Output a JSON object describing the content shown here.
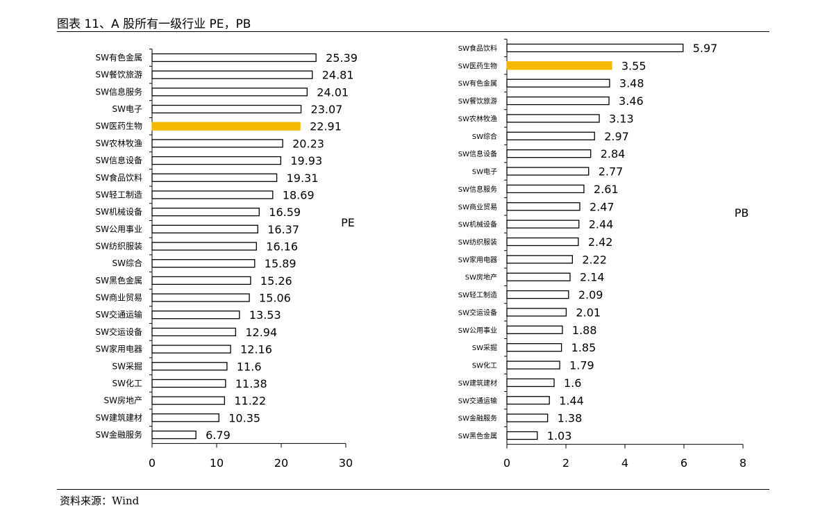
{
  "title": "图表 11、A 股所有一级行业 PE，PB",
  "source": "资料来源：Wind",
  "colors": {
    "bar_fill": "#ffffff",
    "bar_stroke": "#000000",
    "highlight": "#f5b800"
  },
  "chart_data": [
    {
      "type": "bar",
      "orientation": "horizontal",
      "series_label": "PE",
      "categories": [
        "SW有色金属",
        "SW餐饮旅游",
        "SW信息服务",
        "SW电子",
        "SW医药生物",
        "SW农林牧渔",
        "SW信息设备",
        "SW食品饮料",
        "SW轻工制造",
        "SW机械设备",
        "SW公用事业",
        "SW纺织服装",
        "SW综合",
        "SW黑色金属",
        "SW商业贸易",
        "SW交通运输",
        "SW交运设备",
        "SW家用电器",
        "SW采掘",
        "SW化工",
        "SW房地产",
        "SW建筑建材",
        "SW金融服务"
      ],
      "values": [
        25.39,
        24.81,
        24.01,
        23.07,
        22.91,
        20.23,
        19.93,
        19.31,
        18.69,
        16.59,
        16.37,
        16.16,
        15.89,
        15.26,
        15.06,
        13.53,
        12.94,
        12.16,
        11.6,
        11.38,
        11.22,
        10.35,
        6.79
      ],
      "value_labels": [
        "25.39",
        "24.81",
        "24.01",
        "23.07",
        "22.91",
        "20.23",
        "19.93",
        "19.31",
        "18.69",
        "16.59",
        "16.37",
        "16.16",
        "15.89",
        "15.26",
        "15.06",
        "13.53",
        "12.94",
        "12.16",
        "11.6",
        "11.38",
        "11.22",
        "10.35",
        "6.79"
      ],
      "highlight": "SW医药生物",
      "xlim": [
        0,
        30
      ],
      "xticks": [
        "0",
        "10",
        "20",
        "30"
      ],
      "grid": false
    },
    {
      "type": "bar",
      "orientation": "horizontal",
      "series_label": "PB",
      "categories": [
        "SW食品饮料",
        "SW医药生物",
        "SW有色金属",
        "SW餐饮旅游",
        "SW农林牧渔",
        "SW综合",
        "SW信息设备",
        "SW电子",
        "SW信息服务",
        "SW商业贸易",
        "SW机械设备",
        "SW纺织服装",
        "SW家用电器",
        "SW房地产",
        "SW轻工制造",
        "SW交运设备",
        "SW公用事业",
        "SW采掘",
        "SW化工",
        "SW建筑建材",
        "SW交通运输",
        "SW金融服务",
        "SW黑色金属"
      ],
      "values": [
        5.97,
        3.55,
        3.48,
        3.46,
        3.13,
        2.97,
        2.84,
        2.77,
        2.61,
        2.47,
        2.44,
        2.42,
        2.22,
        2.14,
        2.09,
        2.01,
        1.88,
        1.85,
        1.79,
        1.6,
        1.44,
        1.38,
        1.03
      ],
      "value_labels": [
        "5.97",
        "3.55",
        "3.48",
        "3.46",
        "3.13",
        "2.97",
        "2.84",
        "2.77",
        "2.61",
        "2.47",
        "2.44",
        "2.42",
        "2.22",
        "2.14",
        "2.09",
        "2.01",
        "1.88",
        "1.85",
        "1.79",
        "1.6",
        "1.44",
        "1.38",
        "1.03"
      ],
      "highlight": "SW医药生物",
      "xlim": [
        0,
        8
      ],
      "xticks": [
        "0",
        "2",
        "4",
        "6",
        "8"
      ],
      "grid": false
    }
  ]
}
